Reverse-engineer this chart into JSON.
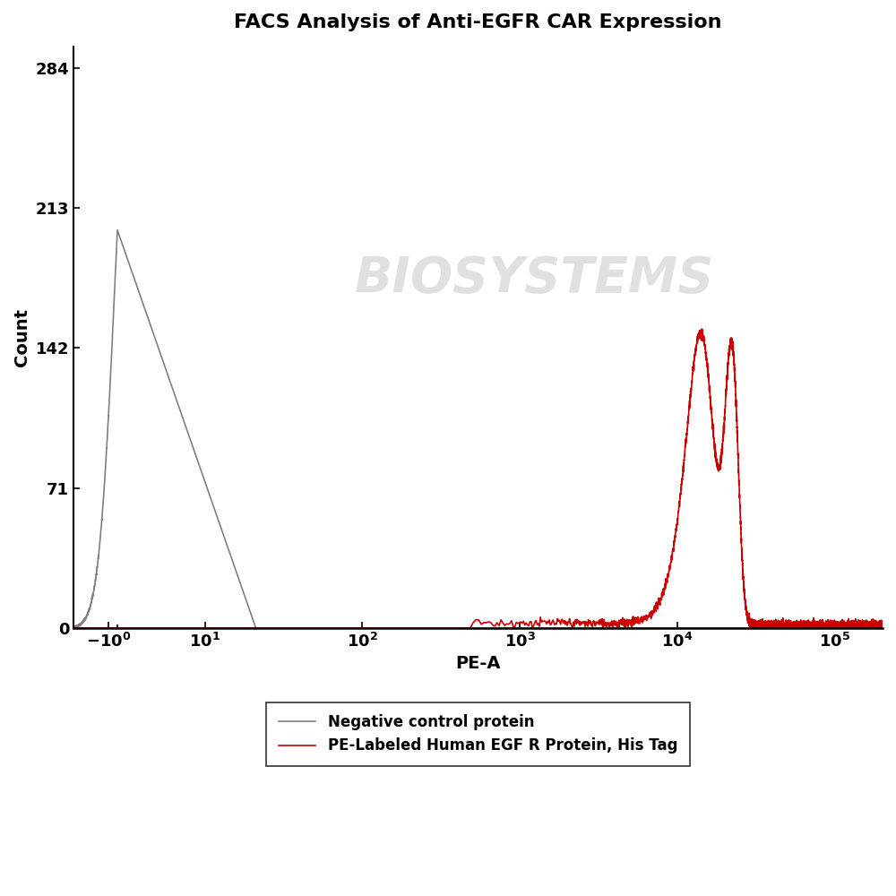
{
  "title": "FACS Analysis of Anti-EGFR CAR Expression",
  "xlabel": "PE-A",
  "ylabel": "Count",
  "ylim": [
    0,
    295
  ],
  "yticks": [
    0,
    71,
    142,
    213,
    284
  ],
  "background_color": "#ffffff",
  "watermark_text": "BIOSYSTEMS",
  "gray_color": "#808080",
  "red_color": "#cc0000",
  "legend_labels": [
    "Negative control protein",
    "PE-Labeled Human EGF R Protein, His Tag"
  ],
  "title_fontsize": 16,
  "label_fontsize": 14,
  "tick_fontsize": 13,
  "xtick_positions": [
    -1,
    10,
    100,
    1000,
    10000,
    100000
  ],
  "xtick_labels": [
    "-10",
    "10",
    "10",
    "10",
    "10",
    "10"
  ],
  "xtick_exponents": [
    "0",
    "1",
    "2",
    "3",
    "4",
    "5"
  ],
  "xtick_signs": [
    "-",
    "",
    "",
    "",
    "",
    ""
  ]
}
